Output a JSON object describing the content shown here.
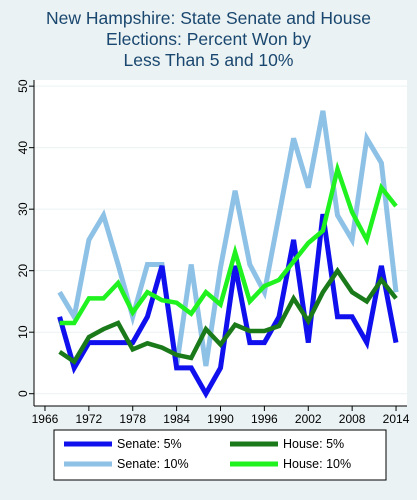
{
  "chart_data": {
    "type": "line",
    "title_lines": [
      "New Hampshire: State Senate and House",
      "Elections: Percent Won by",
      "Less Than 5 and 10%"
    ],
    "xlabel": "",
    "ylabel": "",
    "xlim": [
      1964.5,
      2015.5
    ],
    "ylim": [
      -2,
      51
    ],
    "x_ticks": [
      1966,
      1972,
      1978,
      1984,
      1990,
      1996,
      2002,
      2008,
      2014
    ],
    "x_tick_labels": [
      "1966",
      "1972",
      "1978",
      "1984",
      "1990",
      "1996",
      "2002",
      "2008",
      "2014"
    ],
    "y_ticks": [
      0,
      10,
      20,
      30,
      40,
      50
    ],
    "y_tick_labels": [
      "0",
      "10",
      "20",
      "30",
      "40",
      "50"
    ],
    "grid": "horizontal",
    "legend_position": "bottom",
    "x": [
      1968,
      1970,
      1972,
      1974,
      1976,
      1978,
      1980,
      1982,
      1984,
      1986,
      1988,
      1990,
      1992,
      1994,
      1996,
      1998,
      2000,
      2002,
      2004,
      2006,
      2008,
      2010,
      2012,
      2014
    ],
    "series": [
      {
        "name": "Senate: 10%",
        "color": "#8ec1e6",
        "width": 5,
        "values": [
          16.5,
          12.5,
          25,
          29,
          21,
          12.5,
          21,
          21,
          4.5,
          21,
          4.5,
          20.5,
          33,
          21,
          16.5,
          29,
          41.5,
          33.5,
          46,
          29,
          25,
          41.5,
          37.5,
          16.5
        ]
      },
      {
        "name": "Senate: 5%",
        "color": "#1010ee",
        "width": 5,
        "values": [
          12.5,
          4.2,
          8.3,
          8.3,
          8.3,
          8.3,
          12.5,
          20.8,
          4.2,
          4.2,
          0,
          4.2,
          20.8,
          8.3,
          8.3,
          12.5,
          25,
          8.3,
          29.2,
          12.5,
          12.5,
          8.3,
          20.8,
          8.3
        ]
      },
      {
        "name": "House: 5%",
        "color": "#1a7a1a",
        "width": 4.5,
        "values": [
          6.8,
          5.2,
          9.2,
          10.5,
          11.5,
          7.2,
          8.2,
          7.5,
          6.3,
          5.8,
          10.5,
          8.0,
          11.2,
          10.2,
          10.2,
          11.0,
          15.5,
          11.8,
          16.5,
          20.0,
          16.5,
          15.0,
          18.5,
          15.5
        ]
      },
      {
        "name": "House: 10%",
        "color": "#1ff21f",
        "width": 4.5,
        "values": [
          11.5,
          11.5,
          15.5,
          15.5,
          18.0,
          13.2,
          16.5,
          15.2,
          14.8,
          13.0,
          16.5,
          14.5,
          23.0,
          15.0,
          17.5,
          18.5,
          21.5,
          24.5,
          26.5,
          36.5,
          29.5,
          25.0,
          33.5,
          30.5
        ]
      }
    ],
    "legend": [
      {
        "label": "Senate: 5%",
        "color": "#1010ee"
      },
      {
        "label": "House: 5%",
        "color": "#1a7a1a"
      },
      {
        "label": "Senate: 10%",
        "color": "#8ec1e6"
      },
      {
        "label": "House: 10%",
        "color": "#1ff21f"
      }
    ]
  }
}
